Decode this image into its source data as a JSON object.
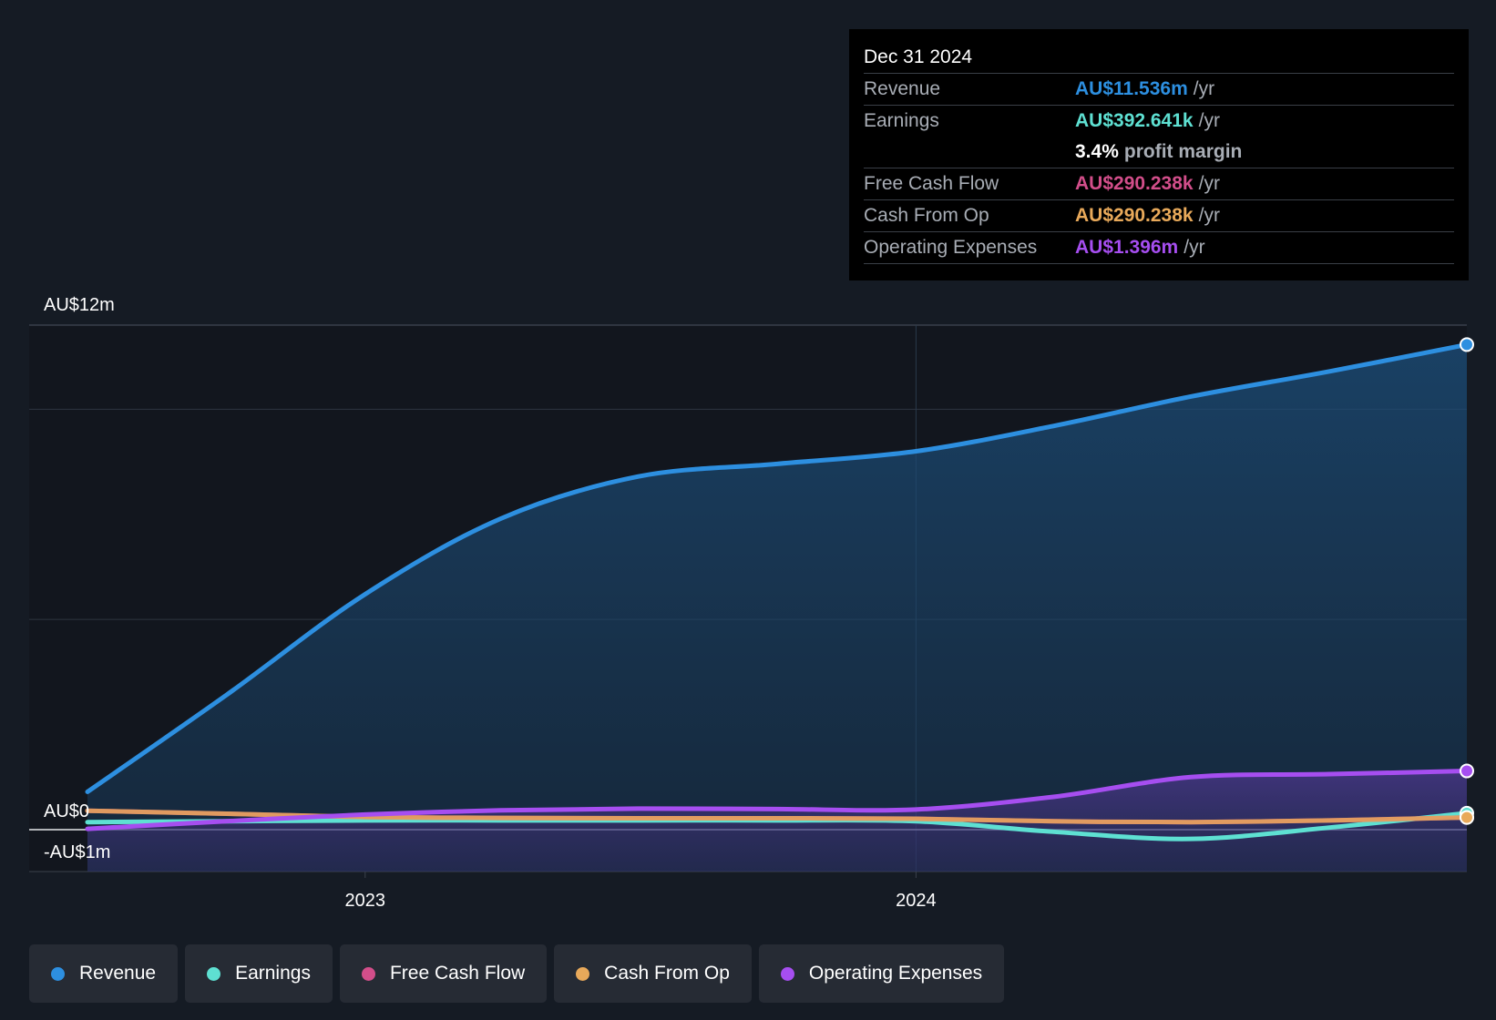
{
  "chart_data": {
    "type": "line",
    "x": [
      "2022-07-01",
      "2022-10-01",
      "2023-01-01",
      "2023-04-01",
      "2023-07-01",
      "2023-10-01",
      "2024-01-01",
      "2024-04-01",
      "2024-07-01",
      "2024-10-01",
      "2024-12-31"
    ],
    "x_ticks": [
      "2023",
      "2024"
    ],
    "y_ticks": [
      {
        "value": 12,
        "label": "AU$12m"
      },
      {
        "value": 0,
        "label": "AU$0"
      },
      {
        "value": -1,
        "label": "-AU$1m"
      }
    ],
    "ylim": [
      -1,
      12
    ],
    "series": [
      {
        "name": "Revenue",
        "color": "#2d8fe0",
        "values": [
          0.9,
          3.2,
          5.6,
          7.4,
          8.4,
          8.7,
          9.0,
          9.6,
          10.3,
          10.9,
          11.536
        ]
      },
      {
        "name": "Earnings",
        "color": "#5ee0d2",
        "values": [
          0.18,
          0.2,
          0.22,
          0.22,
          0.22,
          0.22,
          0.2,
          -0.05,
          -0.22,
          0.05,
          0.392641
        ]
      },
      {
        "name": "Free Cash Flow",
        "color": "#d24e8a",
        "values": [
          0.45,
          0.38,
          0.3,
          0.28,
          0.27,
          0.27,
          0.26,
          0.2,
          0.18,
          0.22,
          0.290238
        ]
      },
      {
        "name": "Cash From Op",
        "color": "#e8a95a",
        "values": [
          0.45,
          0.38,
          0.3,
          0.28,
          0.27,
          0.27,
          0.26,
          0.2,
          0.18,
          0.22,
          0.290238
        ]
      },
      {
        "name": "Operating Expenses",
        "color": "#a64ef0",
        "values": [
          0.02,
          0.2,
          0.36,
          0.46,
          0.5,
          0.49,
          0.48,
          0.78,
          1.25,
          1.32,
          1.396
        ]
      }
    ],
    "grid": true
  },
  "tooltip": {
    "date": "Dec 31 2024",
    "rows": [
      {
        "label": "Revenue",
        "value": "AU$11.536m",
        "unit": "/yr",
        "color": "#2d8fe0"
      },
      {
        "label": "Earnings",
        "value": "AU$392.641k",
        "unit": "/yr",
        "color": "#5ee0d2"
      },
      {
        "label": "",
        "value": "3.4%",
        "unit": "profit margin",
        "color": "#ffffff"
      },
      {
        "label": "Free Cash Flow",
        "value": "AU$290.238k",
        "unit": "/yr",
        "color": "#d24e8a"
      },
      {
        "label": "Cash From Op",
        "value": "AU$290.238k",
        "unit": "/yr",
        "color": "#e8a95a"
      },
      {
        "label": "Operating Expenses",
        "value": "AU$1.396m",
        "unit": "/yr",
        "color": "#a64ef0"
      }
    ]
  },
  "legend": [
    {
      "label": "Revenue",
      "color": "#2d8fe0"
    },
    {
      "label": "Earnings",
      "color": "#5ee0d2"
    },
    {
      "label": "Free Cash Flow",
      "color": "#d24e8a"
    },
    {
      "label": "Cash From Op",
      "color": "#e8a95a"
    },
    {
      "label": "Operating Expenses",
      "color": "#a64ef0"
    }
  ]
}
